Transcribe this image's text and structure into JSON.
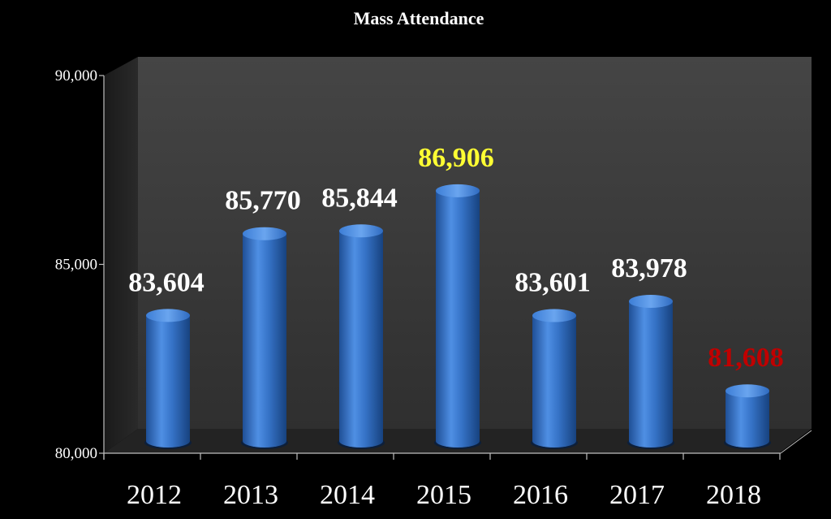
{
  "chart_data": {
    "type": "bar",
    "title": "Mass Attendance",
    "xlabel": "",
    "ylabel": "",
    "categories": [
      "2012",
      "2013",
      "2014",
      "2015",
      "2016",
      "2017",
      "2018"
    ],
    "values": [
      83604,
      85770,
      85844,
      86906,
      83601,
      83978,
      81608
    ],
    "data_labels": [
      "83,604",
      "85,770",
      "85,844",
      "86,906",
      "83,601",
      "83,978",
      "81,608"
    ],
    "ylim": [
      80000,
      90000
    ],
    "yticks": [
      80000,
      85000,
      90000
    ],
    "ytick_labels": [
      "80,000",
      "85,000",
      "90,000"
    ],
    "grid": false,
    "legend": "none",
    "style": "3d-cylinder",
    "colors": {
      "background": "#000000",
      "plot_back_wall": "#3a3a3a",
      "bar": "#2f6fc4",
      "label_default": "#ffffff",
      "label_highlight_max": "#ffff33",
      "label_highlight_min": "#c00000"
    },
    "label_color_keys": [
      "label_default",
      "label_default",
      "label_default",
      "label_highlight_max",
      "label_default",
      "label_default",
      "label_highlight_min"
    ]
  }
}
